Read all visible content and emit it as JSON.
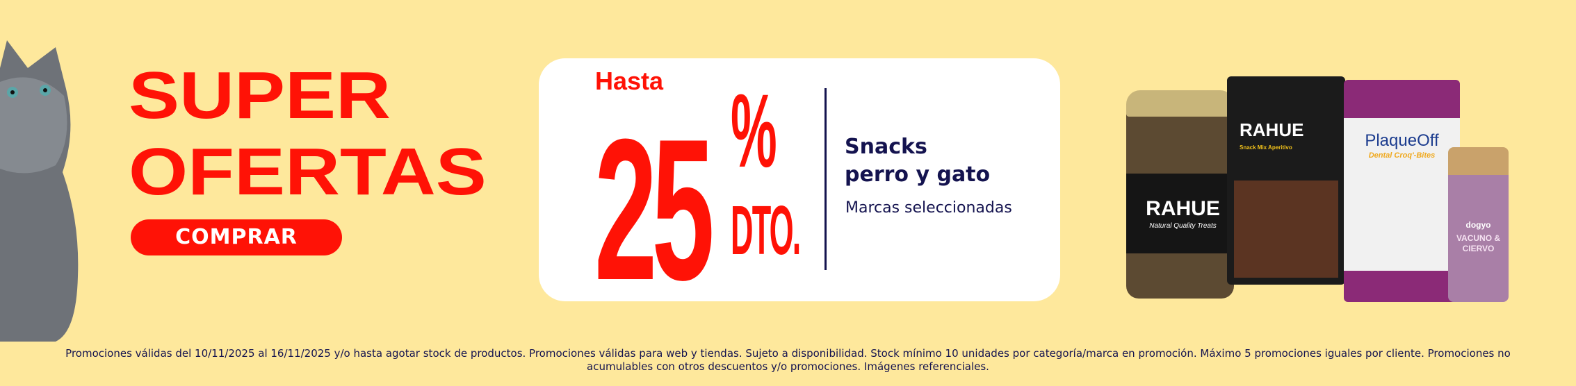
{
  "hero": {
    "line1": "SUPER",
    "line2": "OFERTAS",
    "button": "COMPRAR"
  },
  "offer": {
    "prefix": "Hasta",
    "value": "25",
    "percent": "%",
    "suffix": "DTO.",
    "title_line1": "Snacks",
    "title_line2": "perro y gato",
    "subtitle": "Marcas seleccionadas"
  },
  "products": [
    {
      "brand": "RAHUE",
      "tagline": "Natural Quality Treats"
    },
    {
      "brand": "RAHUE",
      "tagline": "Snack Mix Aperitivo"
    },
    {
      "brand": "PlaqueOff",
      "tagline": "Dental Croq'-Bites"
    },
    {
      "brand": "dogyo",
      "tagline": "VACUNO & CIERVO"
    }
  ],
  "footer": {
    "disclaimer": "Promociones válidas del 10/11/2025 al 16/11/2025 y/o hasta agotar stock de productos. Promociones válidas para web y tiendas. Sujeto a disponibilidad. Stock mínimo 10 unidades por categoría/marca en promoción. Máximo 5 promociones iguales por cliente. Promociones no acumulables con otros descuentos y/o promociones. Imágenes referenciales."
  },
  "colors": {
    "background": "#fee89c",
    "accent": "#ff1206",
    "text": "#14134f"
  }
}
